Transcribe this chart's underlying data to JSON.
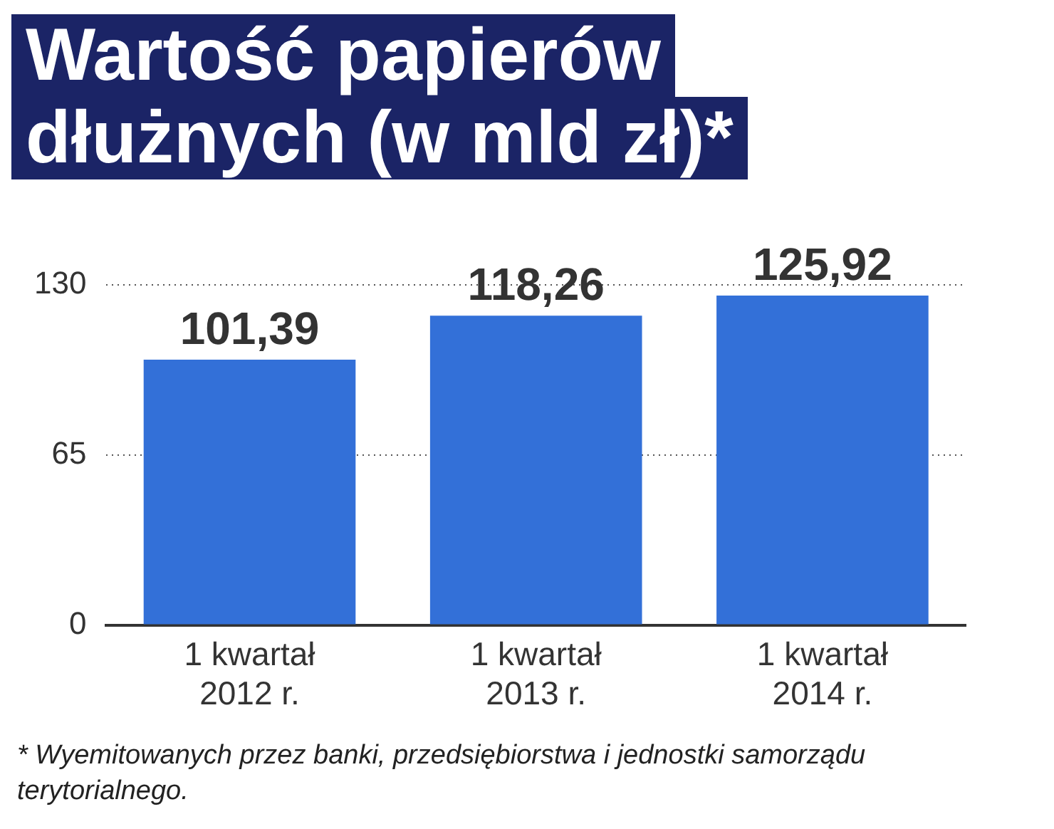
{
  "chart_data": {
    "type": "bar",
    "title": "Wartość papierów\ndłużnych (w mld zł)*",
    "categories": [
      "1 kwartał\n2012 r.",
      "1 kwartał\n2013 r.",
      "1 kwartał\n2014 r."
    ],
    "values": [
      101.39,
      118.26,
      125.92
    ],
    "value_labels": [
      "101,39",
      "118,26",
      "125,92"
    ],
    "color": "#3370d8",
    "ylim": [
      0,
      130
    ],
    "yticks": [
      0,
      65,
      130
    ],
    "grid": "y",
    "annotations": [
      "* Wyemitowanych przez banki, przedsiębiorstwa i jednostki samorządu terytorialnego."
    ]
  }
}
